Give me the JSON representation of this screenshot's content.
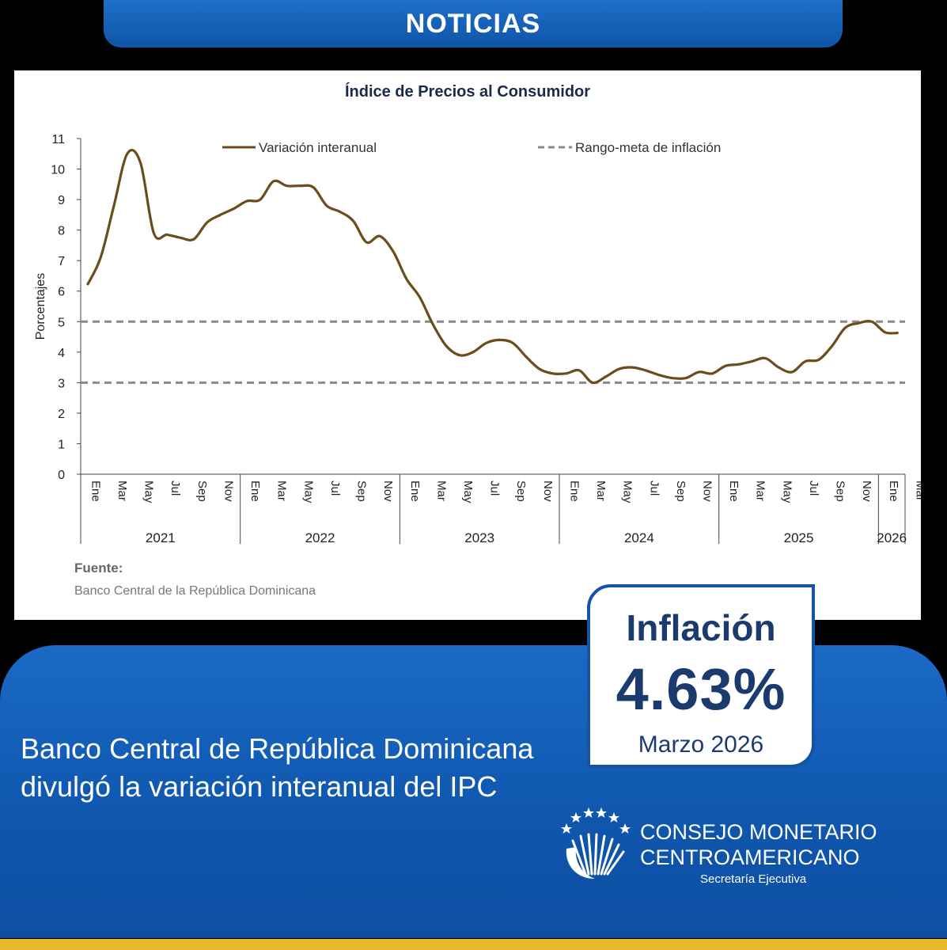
{
  "header": {
    "title": "NOTICIAS"
  },
  "chart_data": {
    "type": "line",
    "title": "Índice de Precios al Consumidor",
    "ylabel": "Porcentajes",
    "ylim": [
      0,
      11
    ],
    "yticks": [
      "0",
      "1",
      "2",
      "3",
      "4",
      "5",
      "6",
      "7",
      "8",
      "9",
      "10",
      "11"
    ],
    "legend": {
      "series_label": "Variación interanual",
      "range_label": "Rango-meta de inflación",
      "placement": "top"
    },
    "month_labels": [
      "Ene",
      "Mar",
      "May",
      "Jul",
      "Sep",
      "Nov",
      "Ene",
      "Mar",
      "May",
      "Jul",
      "Sep",
      "Nov",
      "Ene",
      "Mar",
      "May",
      "Jul",
      "Sep",
      "Nov",
      "Ene",
      "Mar",
      "May",
      "Jul",
      "Sep",
      "Nov",
      "Ene",
      "Mar",
      "May",
      "Jul",
      "Sep",
      "Nov",
      "Ene",
      "Mar"
    ],
    "years": [
      "2021",
      "2022",
      "2023",
      "2024",
      "2025",
      "2026"
    ],
    "series": [
      {
        "name": "Variación interanual",
        "values": [
          6.2,
          7.1,
          8.8,
          10.5,
          10.2,
          7.9,
          7.85,
          7.75,
          7.7,
          8.25,
          8.5,
          8.7,
          8.95,
          9.0,
          9.6,
          9.45,
          9.45,
          9.4,
          8.8,
          8.6,
          8.3,
          7.6,
          7.8,
          7.3,
          6.4,
          5.8,
          4.9,
          4.2,
          3.9,
          4.0,
          4.3,
          4.4,
          4.3,
          3.85,
          3.45,
          3.3,
          3.3,
          3.4,
          3.0,
          3.2,
          3.45,
          3.5,
          3.4,
          3.25,
          3.15,
          3.15,
          3.35,
          3.3,
          3.55,
          3.6,
          3.7,
          3.8,
          3.5,
          3.35,
          3.7,
          3.75,
          4.2,
          4.8,
          4.95,
          5.0,
          4.65,
          4.63
        ]
      }
    ],
    "target_range": {
      "lower": 3,
      "upper": 5
    },
    "source_label": "Fuente:",
    "source": "Banco Central de la República Dominicana"
  },
  "headline": {
    "line1": "Banco Central de República Dominicana",
    "line2": "divulgó la variación interanual del IPC"
  },
  "badge": {
    "title": "Inflación",
    "value": "4.63%",
    "period": "Marzo 2026"
  },
  "logo": {
    "line1": "CONSEJO MONETARIO",
    "line2": "CENTROAMERICANO",
    "line3": "Secretaría Ejecutiva"
  },
  "colors": {
    "line": "#6b4d1c",
    "dashed": "#8a8a8a",
    "brand_blue": "#1553a6",
    "gold": "#e9b92c",
    "badge_text": "#1b3b6f"
  }
}
